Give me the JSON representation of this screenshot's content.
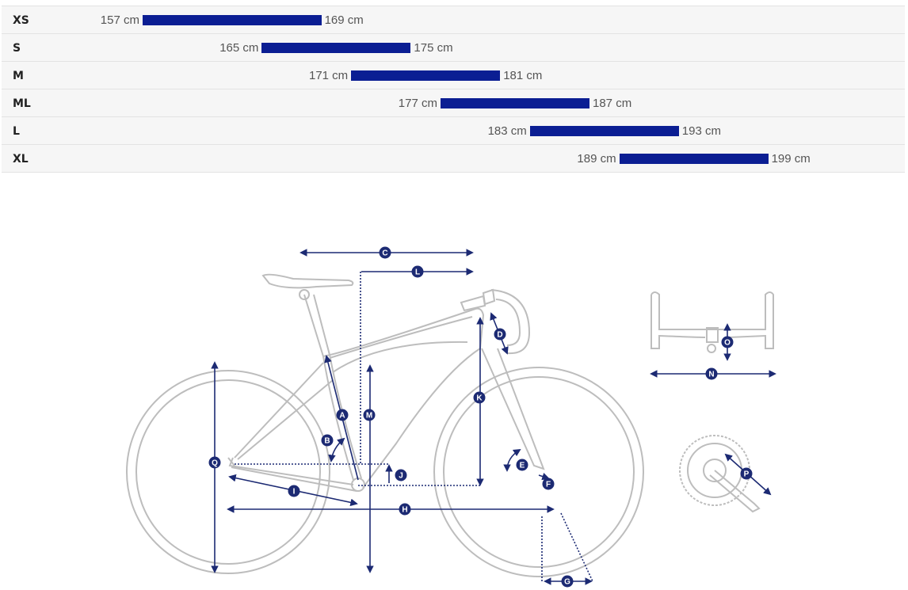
{
  "size_chart": {
    "rows": [
      {
        "size": "XS",
        "min": "157 cm",
        "max": "169 cm",
        "min_cm": 157,
        "max_cm": 169
      },
      {
        "size": "S",
        "min": "165 cm",
        "max": "175 cm",
        "min_cm": 165,
        "max_cm": 175
      },
      {
        "size": "M",
        "min": "171 cm",
        "max": "181 cm",
        "min_cm": 171,
        "max_cm": 181
      },
      {
        "size": "ML",
        "min": "177 cm",
        "max": "187 cm",
        "min_cm": 177,
        "max_cm": 187
      },
      {
        "size": "L",
        "min": "183 cm",
        "max": "193 cm",
        "min_cm": 183,
        "max_cm": 193
      },
      {
        "size": "XL",
        "min": "189 cm",
        "max": "199 cm",
        "min_cm": 189,
        "max_cm": 199
      }
    ],
    "bar_color": "#0b1e93"
  },
  "geometry_diagram": {
    "line_color": "#1c2a73",
    "bike_color": "#bdbdbd",
    "labels": {
      "A": "A",
      "B": "B",
      "C": "C",
      "D": "D",
      "E": "E",
      "F": "F",
      "G": "G",
      "H": "H",
      "I": "I",
      "J": "J",
      "K": "K",
      "L": "L",
      "M": "M",
      "N": "N",
      "O": "O",
      "P": "P",
      "Q": "Q"
    }
  }
}
